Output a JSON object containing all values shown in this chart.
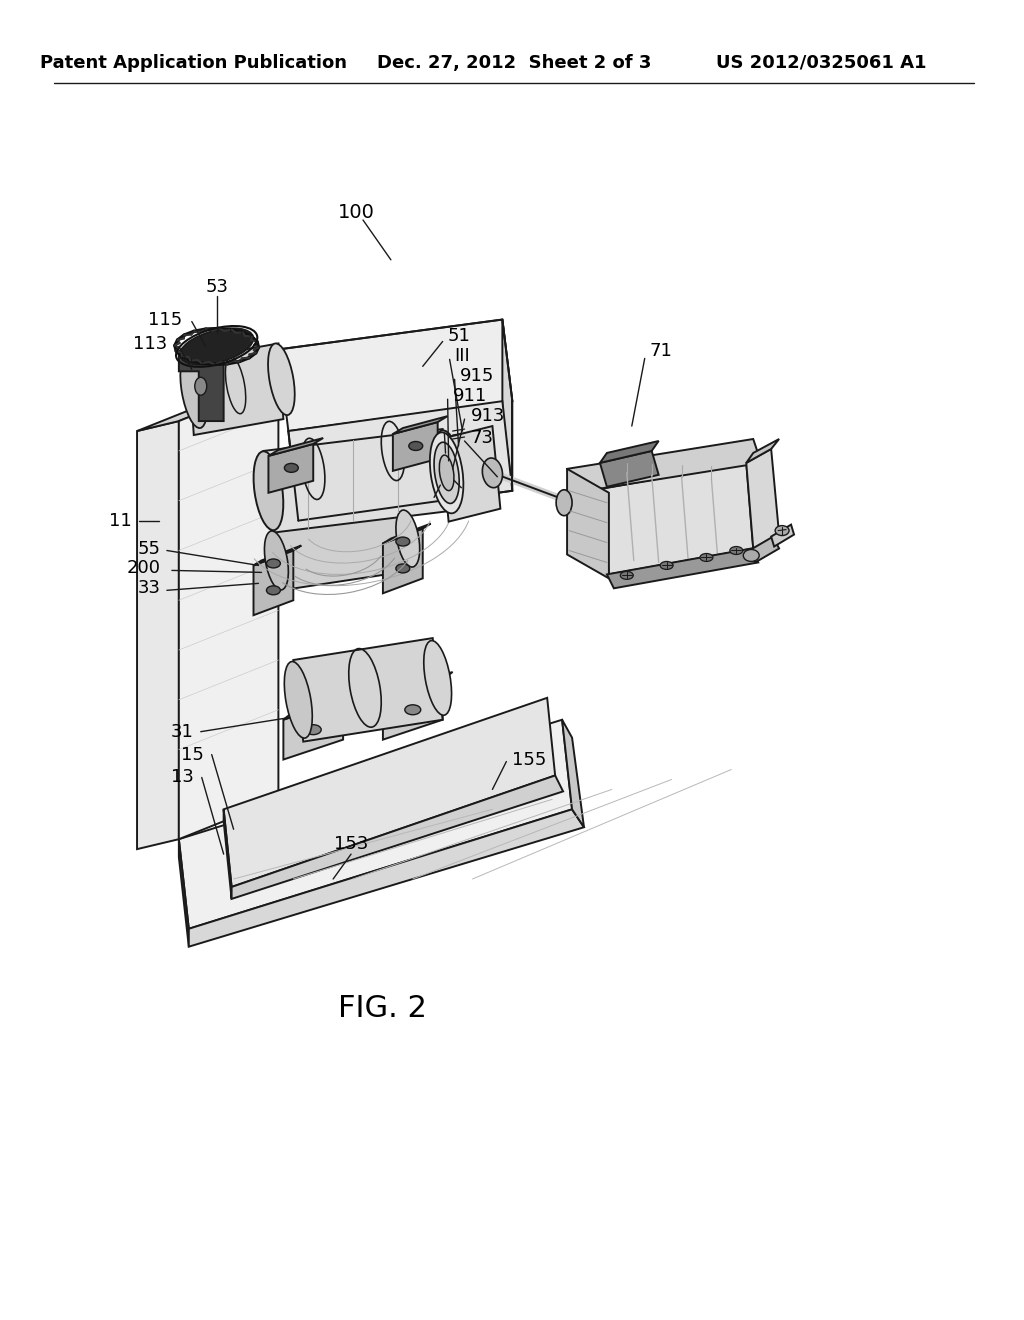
{
  "background_color": "#ffffff",
  "header_left": "Patent Application Publication",
  "header_center": "Dec. 27, 2012  Sheet 2 of 3",
  "header_right": "US 2012/0325061 A1",
  "figure_label": "FIG. 2",
  "header_fontsize": 13,
  "label_fontsize": 13,
  "fig_label_fontsize": 22,
  "line_color": "#1a1a1a",
  "lw": 1.4
}
